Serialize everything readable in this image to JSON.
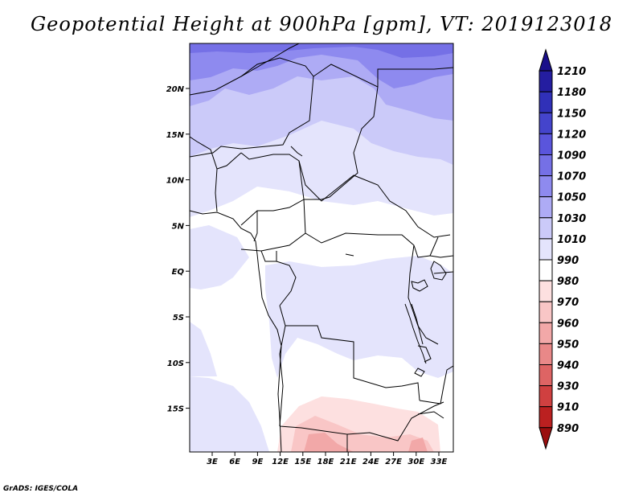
{
  "title": "Geopotential Height at 900hPa [gpm], VT: 2019123018",
  "credit": "GrADS: IGES/COLA",
  "map": {
    "lon_labels": [
      "3E",
      "6E",
      "9E",
      "12E",
      "15E",
      "18E",
      "21E",
      "24E",
      "27E",
      "30E",
      "33E"
    ],
    "lat_labels": [
      "20N",
      "15N",
      "10N",
      "5N",
      "EQ",
      "5S",
      "10S",
      "15S"
    ],
    "background_color": "#ffffff",
    "border_color": "#000000"
  },
  "colorbar": {
    "labels": [
      "1210",
      "1180",
      "1150",
      "1120",
      "1090",
      "1070",
      "1050",
      "1030",
      "1010",
      "990",
      "980",
      "970",
      "960",
      "950",
      "940",
      "930",
      "910",
      "890"
    ],
    "colors": [
      "#1a0f8a",
      "#241da0",
      "#3030b8",
      "#4444cc",
      "#5a55dc",
      "#7570e6",
      "#8e8aef",
      "#aeabf5",
      "#cbcaf9",
      "#e4e4fc",
      "#ffffff",
      "#fde0e0",
      "#f9c6c6",
      "#f2a8a8",
      "#e98888",
      "#de6464",
      "#d04040",
      "#bb2020",
      "#9a0e0e"
    ]
  }
}
